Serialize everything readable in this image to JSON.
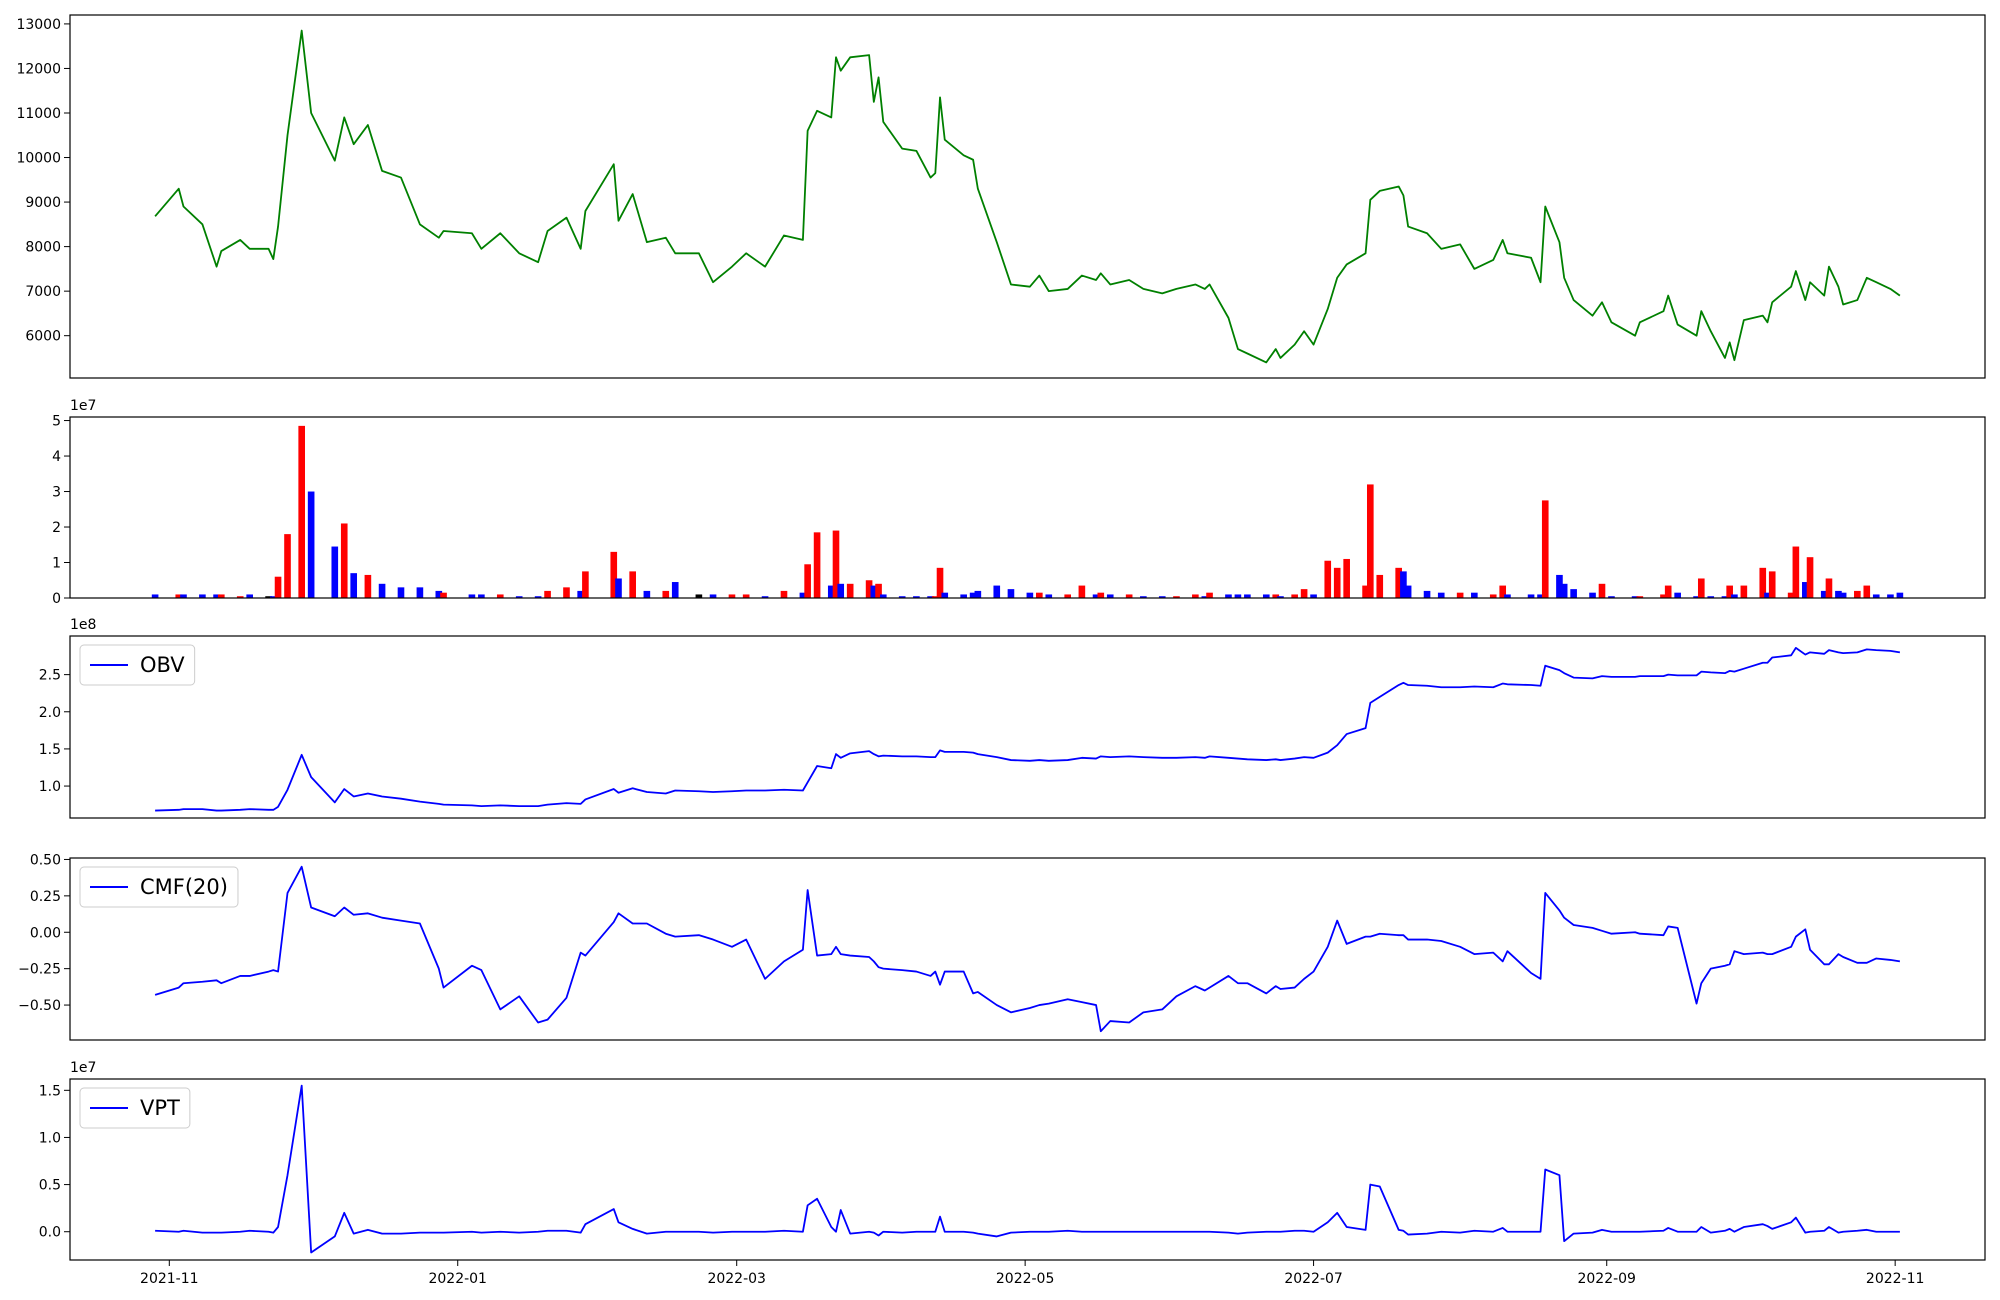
{
  "chart_data": [
    {
      "type": "line",
      "x": [
        "2021-10-29",
        "2021-11-03",
        "2021-11-04",
        "2021-11-08",
        "2021-11-11",
        "2021-11-12",
        "2021-11-16",
        "2021-11-18",
        "2021-11-22",
        "2021-11-23",
        "2021-11-24",
        "2021-11-26",
        "2021-11-29",
        "2021-12-01",
        "2021-12-06",
        "2021-12-08",
        "2021-12-10",
        "2021-12-13",
        "2021-12-16",
        "2021-12-20",
        "2021-12-24",
        "2021-12-28",
        "2021-12-29",
        "2022-01-04",
        "2022-01-06",
        "2022-01-10",
        "2022-01-14",
        "2022-01-18",
        "2022-01-20",
        "2022-01-24",
        "2022-01-27",
        "2022-01-28",
        "2022-02-03",
        "2022-02-04",
        "2022-02-07",
        "2022-02-10",
        "2022-02-14",
        "2022-02-16",
        "2022-02-21",
        "2022-02-24",
        "2022-02-28",
        "2022-03-03",
        "2022-03-07",
        "2022-03-11",
        "2022-03-15",
        "2022-03-16",
        "2022-03-18",
        "2022-03-21",
        "2022-03-22",
        "2022-03-23",
        "2022-03-25",
        "2022-03-29",
        "2022-03-30",
        "2022-03-31",
        "2022-04-01",
        "2022-04-05",
        "2022-04-08",
        "2022-04-11",
        "2022-04-12",
        "2022-04-13",
        "2022-04-14",
        "2022-04-18",
        "2022-04-20",
        "2022-04-21",
        "2022-04-25",
        "2022-04-28",
        "2022-05-02",
        "2022-05-04",
        "2022-05-06",
        "2022-05-10",
        "2022-05-13",
        "2022-05-16",
        "2022-05-17",
        "2022-05-19",
        "2022-05-23",
        "2022-05-26",
        "2022-05-30",
        "2022-06-02",
        "2022-06-06",
        "2022-06-08",
        "2022-06-09",
        "2022-06-13",
        "2022-06-15",
        "2022-06-17",
        "2022-06-21",
        "2022-06-23",
        "2022-06-24",
        "2022-06-27",
        "2022-06-29",
        "2022-07-01",
        "2022-07-04",
        "2022-07-06",
        "2022-07-08",
        "2022-07-12",
        "2022-07-13",
        "2022-07-15",
        "2022-07-19",
        "2022-07-20",
        "2022-07-21",
        "2022-07-25",
        "2022-07-28",
        "2022-08-01",
        "2022-08-04",
        "2022-08-08",
        "2022-08-10",
        "2022-08-11",
        "2022-08-16",
        "2022-08-18",
        "2022-08-19",
        "2022-08-22",
        "2022-08-23",
        "2022-08-25",
        "2022-08-29",
        "2022-08-31",
        "2022-09-02",
        "2022-09-07",
        "2022-09-08",
        "2022-09-13",
        "2022-09-14",
        "2022-09-16",
        "2022-09-20",
        "2022-09-21",
        "2022-09-23",
        "2022-09-26",
        "2022-09-27",
        "2022-09-28",
        "2022-09-30",
        "2022-10-04",
        "2022-10-05",
        "2022-10-06",
        "2022-10-10",
        "2022-10-11",
        "2022-10-13",
        "2022-10-14",
        "2022-10-17",
        "2022-10-18",
        "2022-10-20",
        "2022-10-21",
        "2022-10-24",
        "2022-10-26",
        "2022-10-28",
        "2022-10-31",
        "2022-11-02"
      ],
      "xlim": [
        "2021-10-11",
        "2022-11-20"
      ],
      "series": [
        {
          "color": "green",
          "values": [
            8680,
            9300,
            8900,
            8500,
            7550,
            7900,
            8150,
            7950,
            7950,
            7720,
            8450,
            10500,
            12850,
            11000,
            9930,
            10900,
            10300,
            10730,
            9700,
            9550,
            8500,
            8200,
            8350,
            8300,
            7950,
            8300,
            7850,
            7650,
            8350,
            8650,
            7950,
            8800,
            9850,
            8580,
            9180,
            8100,
            8200,
            7850,
            7850,
            7200,
            7550,
            7850,
            7550,
            8250,
            8150,
            10600,
            11050,
            10900,
            12250,
            11950,
            12250,
            12300,
            11250,
            11800,
            10800,
            10200,
            10150,
            9550,
            9650,
            11350,
            10400,
            10050,
            9950,
            9300,
            8100,
            7150,
            7100,
            7350,
            7000,
            7050,
            7350,
            7250,
            7400,
            7150,
            7250,
            7050,
            6950,
            7050,
            7150,
            7050,
            7150,
            6400,
            5700,
            5600,
            5400,
            5700,
            5500,
            5800,
            6100,
            5800,
            6600,
            7300,
            7600,
            7850,
            9050,
            9250,
            9350,
            9150,
            8450,
            8300,
            7950,
            8050,
            7500,
            7700,
            8150,
            7850,
            7750,
            7200,
            8900,
            8100,
            7300,
            6800,
            6450,
            6750,
            6300,
            6000,
            6300,
            6550,
            6900,
            6250,
            6000,
            6550,
            6100,
            5500,
            5850,
            5450,
            6350,
            6450,
            6300,
            6750,
            7100,
            7450,
            6800,
            7200,
            6900,
            7550,
            7100,
            6700,
            6800,
            7300,
            7200,
            7050,
            6900
          ]
        }
      ],
      "ylim": [
        5050,
        13200
      ],
      "yticks": [
        6000,
        7000,
        8000,
        9000,
        10000,
        11000,
        12000,
        13000
      ]
    },
    {
      "type": "bar",
      "offset_label": "1e7",
      "values": [
        0.1,
        0.1,
        0.1,
        0.1,
        0.1,
        0.1,
        0.05,
        0.1,
        0.05,
        0.05,
        0.6,
        1.8,
        4.85,
        3.0,
        1.45,
        2.1,
        0.7,
        0.65,
        0.4,
        0.3,
        0.3,
        0.2,
        0.15,
        0.1,
        0.1,
        0.1,
        0.05,
        0.05,
        0.2,
        0.3,
        0.2,
        0.75,
        1.3,
        0.55,
        0.75,
        0.2,
        0.2,
        0.45,
        0.1,
        0.1,
        0.1,
        0.1,
        0.05,
        0.2,
        0.15,
        0.95,
        1.85,
        0.35,
        1.9,
        0.4,
        0.4,
        0.5,
        0.35,
        0.4,
        0.1,
        0.05,
        0.05,
        0.05,
        0.05,
        0.85,
        0.15,
        0.1,
        0.15,
        0.2,
        0.35,
        0.25,
        0.15,
        0.15,
        0.1,
        0.1,
        0.35,
        0.1,
        0.15,
        0.1,
        0.1,
        0.05,
        0.05,
        0.05,
        0.1,
        0.05,
        0.15,
        0.1,
        0.1,
        0.1,
        0.1,
        0.1,
        0.05,
        0.1,
        0.25,
        0.1,
        1.05,
        0.85,
        1.1,
        0.35,
        3.2,
        0.65,
        0.85,
        0.75,
        0.35,
        0.2,
        0.15,
        0.15,
        0.15,
        0.1,
        0.35,
        0.1,
        0.1,
        0.1,
        2.75,
        0.65,
        0.4,
        0.25,
        0.15,
        0.4,
        0.05,
        0.05,
        0.05,
        0.1,
        0.35,
        0.15,
        0.05,
        0.55,
        0.05,
        0.05,
        0.35,
        0.1,
        0.35,
        0.85,
        0.15,
        0.75,
        0.15,
        1.45,
        0.45,
        1.15,
        0.2,
        0.55,
        0.2,
        0.15,
        0.2,
        0.35,
        0.1,
        0.1,
        0.15
      ],
      "up_color": "red",
      "down_color": "blue",
      "flat_color": "black",
      "ylim": [
        0,
        5.1
      ],
      "yticks": [
        0,
        1,
        2,
        3,
        4,
        5
      ]
    },
    {
      "type": "line",
      "offset_label": "1e8",
      "legend": "upper left",
      "series": [
        {
          "name": "OBV",
          "color": "blue",
          "values": [
            0.67,
            0.68,
            0.69,
            0.69,
            0.67,
            0.67,
            0.68,
            0.69,
            0.68,
            0.68,
            0.72,
            0.95,
            1.42,
            1.12,
            0.78,
            0.96,
            0.86,
            0.9,
            0.86,
            0.83,
            0.79,
            0.76,
            0.75,
            0.74,
            0.73,
            0.74,
            0.73,
            0.73,
            0.75,
            0.77,
            0.76,
            0.82,
            0.96,
            0.91,
            0.97,
            0.92,
            0.9,
            0.94,
            0.93,
            0.92,
            0.93,
            0.94,
            0.94,
            0.95,
            0.94,
            1.05,
            1.27,
            1.24,
            1.43,
            1.38,
            1.44,
            1.47,
            1.43,
            1.4,
            1.41,
            1.4,
            1.4,
            1.39,
            1.39,
            1.48,
            1.46,
            1.46,
            1.45,
            1.43,
            1.39,
            1.35,
            1.34,
            1.35,
            1.34,
            1.35,
            1.38,
            1.37,
            1.4,
            1.39,
            1.4,
            1.39,
            1.38,
            1.38,
            1.39,
            1.38,
            1.4,
            1.38,
            1.37,
            1.36,
            1.35,
            1.36,
            1.35,
            1.37,
            1.39,
            1.38,
            1.45,
            1.55,
            1.7,
            1.78,
            2.12,
            2.2,
            2.36,
            2.39,
            2.36,
            2.35,
            2.33,
            2.33,
            2.34,
            2.33,
            2.38,
            2.37,
            2.36,
            2.35,
            2.62,
            2.56,
            2.52,
            2.46,
            2.45,
            2.48,
            2.47,
            2.47,
            2.48,
            2.48,
            2.5,
            2.49,
            2.49,
            2.54,
            2.53,
            2.52,
            2.55,
            2.54,
            2.58,
            2.66,
            2.66,
            2.73,
            2.76,
            2.86,
            2.77,
            2.8,
            2.78,
            2.83,
            2.8,
            2.79,
            2.8,
            2.84,
            2.83,
            2.82,
            2.8
          ]
        }
      ],
      "ylim": [
        0.57,
        3.02
      ],
      "yticks": [
        {
          "value": 1,
          "label": "1.0"
        },
        {
          "value": 1.5,
          "label": "1.5"
        },
        {
          "value": 2,
          "label": "2.0"
        },
        {
          "value": 2.5,
          "label": "2.5"
        }
      ]
    },
    {
      "type": "line",
      "legend": "upper left",
      "series": [
        {
          "name": "CMF(20)",
          "color": "blue",
          "values": [
            -0.43,
            -0.38,
            -0.35,
            -0.34,
            -0.33,
            -0.35,
            -0.3,
            -0.3,
            -0.27,
            -0.26,
            -0.27,
            0.27,
            0.45,
            0.17,
            0.11,
            0.17,
            0.12,
            0.13,
            0.1,
            0.08,
            0.06,
            -0.25,
            -0.38,
            -0.23,
            -0.26,
            -0.53,
            -0.44,
            -0.62,
            -0.6,
            -0.45,
            -0.14,
            -0.16,
            0.07,
            0.13,
            0.06,
            0.06,
            -0.01,
            -0.03,
            -0.02,
            -0.05,
            -0.1,
            -0.05,
            -0.32,
            -0.2,
            -0.12,
            0.29,
            -0.16,
            -0.15,
            -0.1,
            -0.15,
            -0.16,
            -0.17,
            -0.2,
            -0.24,
            -0.25,
            -0.26,
            -0.27,
            -0.3,
            -0.27,
            -0.36,
            -0.27,
            -0.27,
            -0.42,
            -0.41,
            -0.5,
            -0.55,
            -0.52,
            -0.5,
            -0.49,
            -0.46,
            -0.48,
            -0.5,
            -0.68,
            -0.61,
            -0.62,
            -0.55,
            -0.53,
            -0.44,
            -0.37,
            -0.4,
            -0.38,
            -0.3,
            -0.35,
            -0.35,
            -0.42,
            -0.37,
            -0.39,
            -0.38,
            -0.32,
            -0.27,
            -0.1,
            0.08,
            -0.08,
            -0.03,
            -0.03,
            -0.01,
            -0.02,
            -0.02,
            -0.05,
            -0.05,
            -0.06,
            -0.1,
            -0.15,
            -0.14,
            -0.2,
            -0.13,
            -0.28,
            -0.32,
            0.27,
            0.15,
            0.1,
            0.05,
            0.03,
            0.01,
            -0.01,
            0,
            -0.01,
            -0.02,
            0.04,
            0.03,
            -0.49,
            -0.35,
            -0.25,
            -0.23,
            -0.22,
            -0.13,
            -0.15,
            -0.14,
            -0.15,
            -0.15,
            -0.1,
            -0.03,
            0.02,
            -0.12,
            -0.22,
            -0.22,
            -0.15,
            -0.17,
            -0.21,
            -0.21,
            -0.18,
            -0.19,
            -0.2
          ]
        }
      ],
      "ylim": [
        -0.74,
        0.51
      ],
      "yticks": [
        {
          "value": -0.5,
          "label": "−0.50"
        },
        {
          "value": -0.25,
          "label": "−0.25"
        },
        {
          "value": 0,
          "label": "0.00"
        },
        {
          "value": 0.25,
          "label": "0.25"
        },
        {
          "value": 0.5,
          "label": "0.50"
        }
      ]
    },
    {
      "type": "line",
      "offset_label": "1e7",
      "legend": "upper left",
      "series": [
        {
          "name": "VPT",
          "color": "blue",
          "values": [
            0.01,
            0,
            0.01,
            -0.01,
            -0.01,
            -0.01,
            0,
            0.01,
            0,
            -0.01,
            0.05,
            0.6,
            1.55,
            -0.22,
            -0.05,
            0.2,
            -0.02,
            0.02,
            -0.02,
            -0.02,
            -0.01,
            -0.01,
            -0.01,
            0,
            -0.01,
            0,
            -0.01,
            0,
            0.01,
            0.01,
            -0.01,
            0.08,
            0.24,
            0.1,
            0.03,
            -0.02,
            0,
            0,
            0,
            -0.01,
            0,
            0,
            0,
            0.01,
            0,
            0.28,
            0.35,
            0.05,
            0,
            0.23,
            -0.02,
            0,
            -0.01,
            -0.04,
            0,
            -0.01,
            0,
            0,
            0,
            0.16,
            0,
            0,
            -0.01,
            -0.02,
            -0.05,
            -0.01,
            0,
            0,
            0,
            0.01,
            0,
            0,
            0,
            0,
            0,
            0,
            0,
            0,
            0,
            0,
            0,
            -0.01,
            -0.02,
            -0.01,
            0,
            0,
            0,
            0.01,
            0.01,
            0,
            0.1,
            0.2,
            0.05,
            0.02,
            0.5,
            0.48,
            0.02,
            0.01,
            -0.03,
            -0.02,
            0,
            -0.01,
            0.01,
            0,
            0.04,
            0,
            0,
            0,
            0.66,
            0.6,
            -0.1,
            -0.02,
            -0.01,
            0.02,
            0,
            0,
            0,
            0.01,
            0.04,
            0,
            0,
            0.05,
            -0.01,
            0.01,
            0.03,
            0,
            0.05,
            0.08,
            0.06,
            0.03,
            0.1,
            0.15,
            -0.01,
            0,
            0.01,
            0.05,
            -0.01,
            0,
            0.01,
            0.02,
            0,
            0,
            0
          ]
        }
      ],
      "ylim": [
        -0.3,
        1.62
      ],
      "yticks": [
        {
          "value": 0,
          "label": "0.0"
        },
        {
          "value": 0.5,
          "label": "0.5"
        },
        {
          "value": 1,
          "label": "1.0"
        },
        {
          "value": 1.5,
          "label": "1.5"
        }
      ],
      "xticks": [
        {
          "value": "2021-11-01",
          "label": "2021-11"
        },
        {
          "value": "2022-01-01",
          "label": "2022-01"
        },
        {
          "value": "2022-03-01",
          "label": "2022-03"
        },
        {
          "value": "2022-05-01",
          "label": "2022-05"
        },
        {
          "value": "2022-07-01",
          "label": "2022-07"
        },
        {
          "value": "2022-09-01",
          "label": "2022-09"
        },
        {
          "value": "2022-11-01",
          "label": "2022-11"
        }
      ]
    }
  ]
}
